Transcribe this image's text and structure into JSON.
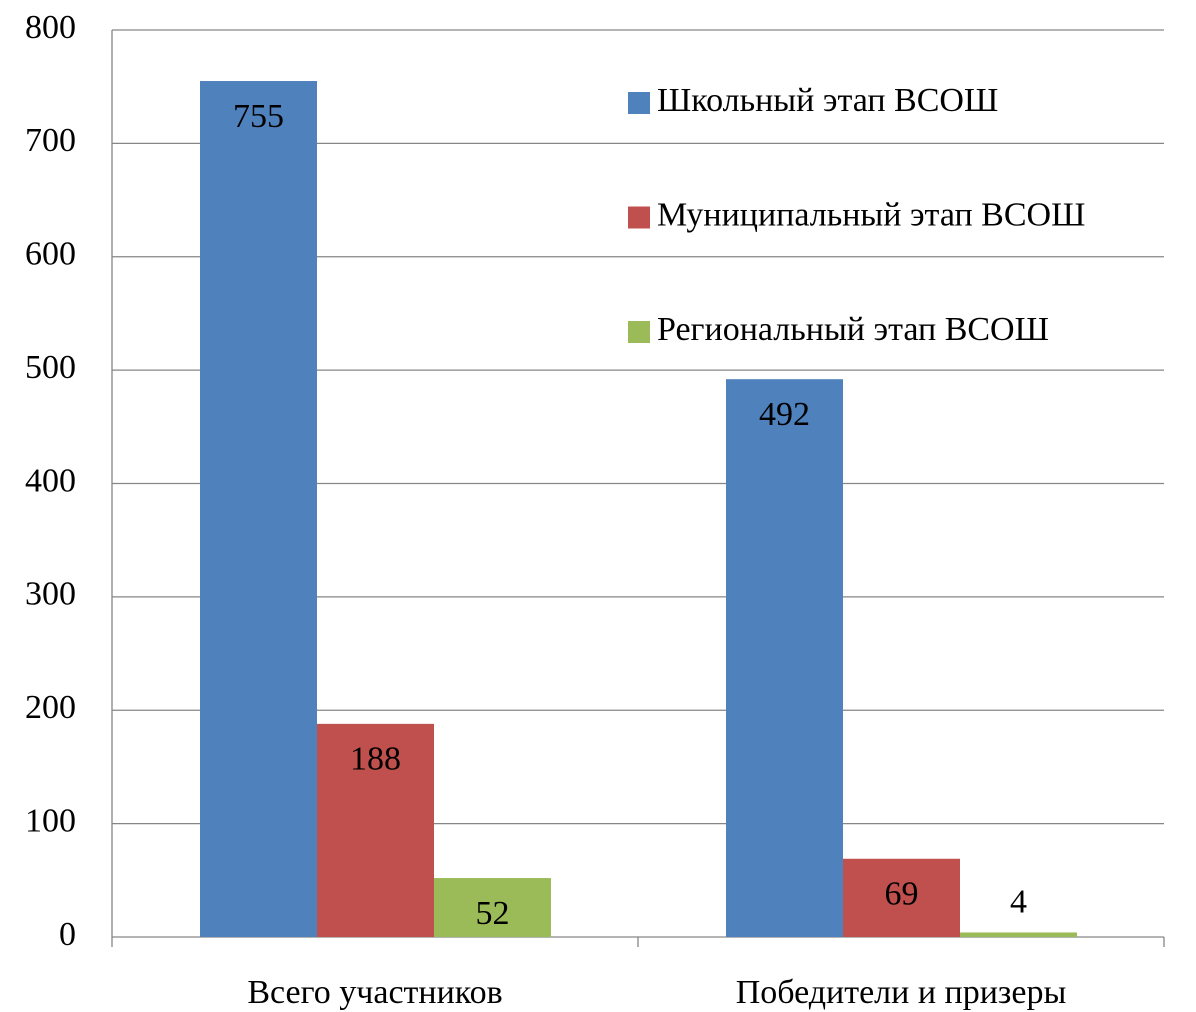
{
  "chart_data": {
    "type": "bar",
    "categories": [
      "Всего участников",
      "Победители и призеры"
    ],
    "series": [
      {
        "name": "Школьный этап ВСОШ",
        "color": "#4f81bd",
        "values": [
          755,
          492
        ]
      },
      {
        "name": "Муниципальный этап ВСОШ",
        "color": "#c0504d",
        "values": [
          188,
          69
        ]
      },
      {
        "name": "Региональный этап ВСОШ",
        "color": "#9bbb59",
        "values": [
          52,
          4
        ]
      }
    ],
    "ylim": [
      0,
      800
    ],
    "yticks": [
      0,
      100,
      200,
      300,
      400,
      500,
      600,
      700,
      800
    ],
    "grid": true,
    "legend": "top-right"
  }
}
